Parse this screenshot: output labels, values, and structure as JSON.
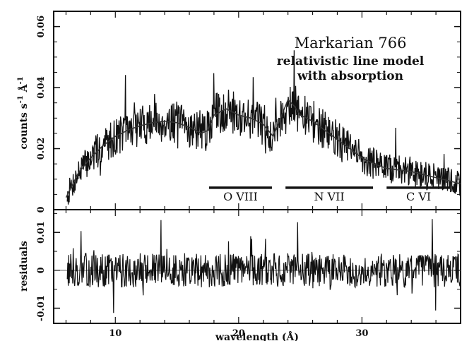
{
  "chart_data": [
    {
      "type": "line",
      "panel": "upper",
      "title_lines": [
        "Markarian 766",
        "relativistic line model",
        "with absorption"
      ],
      "ylabel_main": "counts s",
      "ylabel_sup1": "-1",
      "ylabel_mid": " Å",
      "ylabel_sup2": "-1",
      "xlim": [
        5,
        38
      ],
      "ylim": [
        0,
        0.065
      ],
      "yticks": [
        0,
        0.02,
        0.04,
        0.06
      ],
      "ytick_labels": [
        "0",
        "0.02",
        "0.04",
        "0.06"
      ],
      "model_x": [
        6,
        6.5,
        7,
        8,
        9,
        10,
        11,
        12,
        13,
        14,
        15,
        16,
        17,
        17.5,
        18,
        19,
        20,
        21,
        22,
        22.8,
        23.3,
        24,
        24.5,
        25,
        26,
        27,
        28,
        29,
        30,
        31,
        32,
        33,
        34,
        35,
        36,
        37,
        38
      ],
      "model_y": [
        0.004,
        0.008,
        0.012,
        0.017,
        0.021,
        0.024,
        0.026,
        0.0275,
        0.0285,
        0.029,
        0.0285,
        0.027,
        0.025,
        0.026,
        0.031,
        0.033,
        0.031,
        0.03,
        0.028,
        0.024,
        0.029,
        0.036,
        0.034,
        0.031,
        0.029,
        0.026,
        0.023,
        0.02,
        0.017,
        0.015,
        0.0135,
        0.013,
        0.0125,
        0.0115,
        0.0105,
        0.0095,
        0.0085
      ],
      "data_noise_seed": 7,
      "edges": [
        {
          "label": "O VIII",
          "x_start": 17.6,
          "x_end": 22.7,
          "y": 0.0072
        },
        {
          "label": "N VII",
          "x_start": 23.8,
          "x_end": 30.9,
          "y": 0.0072
        },
        {
          "label": "C VI",
          "x_start": 32.0,
          "x_end": 37.2,
          "y": 0.0072
        }
      ]
    },
    {
      "type": "line",
      "panel": "lower",
      "ylabel": "residuals",
      "xlabel": "wavelength (Å)",
      "xlim": [
        5,
        38
      ],
      "ylim": [
        -0.014,
        0.016
      ],
      "yticks": [
        -0.01,
        0,
        0.01
      ],
      "ytick_labels": [
        "-0.01",
        "0",
        "0.01"
      ],
      "xticks": [
        10,
        20,
        30
      ],
      "xtick_labels": [
        "10",
        "20",
        "30"
      ],
      "residual_amplitude": 0.0045,
      "data_noise_seed": 13
    }
  ]
}
